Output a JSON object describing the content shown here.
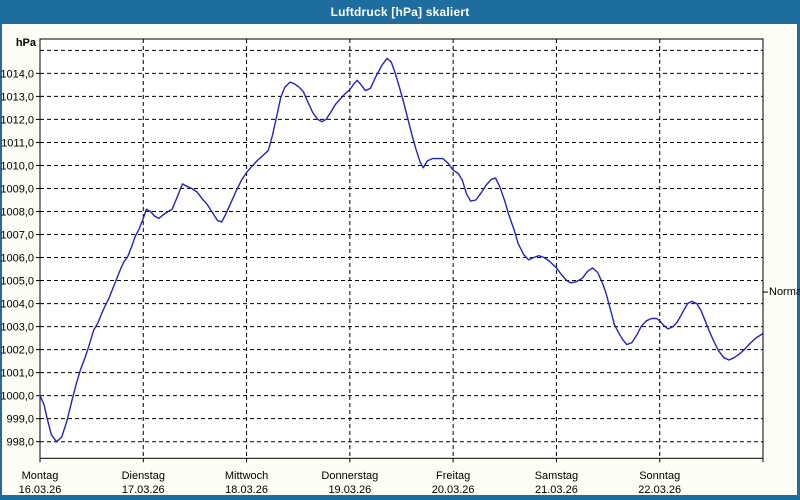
{
  "window": {
    "title": "Luftdruck [hPa] skaliert"
  },
  "colors": {
    "frame_blue": "#1d6d9e",
    "curve_blue": "#2323bd",
    "grid_black": "#000000",
    "panel_bg": "#fdfdf5",
    "plot_bg": "#ffffff",
    "title_text": "#ffffff"
  },
  "chart_data": {
    "type": "line",
    "title": "Luftdruck [hPa] skaliert",
    "unit_label": "hPa",
    "ylabel": "hPa",
    "grid": "dashed",
    "y_axis": {
      "labeled_min": 998.0,
      "labeled_max": 1014.0,
      "tick_step": 1.0,
      "gridline_top_unlabeled": 1015.0,
      "tick_labels": [
        "998,0",
        "999,0",
        "1000,0",
        "1001,0",
        "1002,0",
        "1003,0",
        "1004,0",
        "1005,0",
        "1006,0",
        "1007,0",
        "1008,0",
        "1009,0",
        "1010,0",
        "1011,0",
        "1012,0",
        "1013,0",
        "1014,0"
      ]
    },
    "x_axis": {
      "days": [
        {
          "label": "Montag",
          "date": "16.03.26"
        },
        {
          "label": "Dienstag",
          "date": "17.03.26"
        },
        {
          "label": "Mittwoch",
          "date": "18.03.26"
        },
        {
          "label": "Donnerstag",
          "date": "19.03.26"
        },
        {
          "label": "Freitag",
          "date": "20.03.26"
        },
        {
          "label": "Samstag",
          "date": "21.03.26"
        },
        {
          "label": "Sonntag",
          "date": "22.03.26"
        }
      ],
      "total_days": 7
    },
    "normal": {
      "label": "Normal",
      "value": 1004.5
    },
    "series": [
      {
        "name": "Luftdruck",
        "unit": "hPa",
        "points": [
          [
            0.0,
            1000.0
          ],
          [
            0.04,
            999.6
          ],
          [
            0.07,
            999.0
          ],
          [
            0.11,
            998.3
          ],
          [
            0.16,
            998.0
          ],
          [
            0.21,
            998.2
          ],
          [
            0.26,
            998.9
          ],
          [
            0.31,
            999.8
          ],
          [
            0.35,
            1000.5
          ],
          [
            0.39,
            1001.1
          ],
          [
            0.44,
            1001.7
          ],
          [
            0.47,
            1002.1
          ],
          [
            0.52,
            1002.85
          ],
          [
            0.56,
            1003.15
          ],
          [
            0.6,
            1003.6
          ],
          [
            0.63,
            1003.9
          ],
          [
            0.67,
            1004.25
          ],
          [
            0.7,
            1004.6
          ],
          [
            0.74,
            1005.05
          ],
          [
            0.78,
            1005.5
          ],
          [
            0.81,
            1005.8
          ],
          [
            0.85,
            1006.05
          ],
          [
            0.89,
            1006.5
          ],
          [
            0.92,
            1006.9
          ],
          [
            0.96,
            1007.25
          ],
          [
            1.0,
            1007.7
          ],
          [
            1.03,
            1008.1
          ],
          [
            1.07,
            1008.0
          ],
          [
            1.11,
            1007.8
          ],
          [
            1.15,
            1007.7
          ],
          [
            1.19,
            1007.85
          ],
          [
            1.24,
            1008.0
          ],
          [
            1.28,
            1008.1
          ],
          [
            1.33,
            1008.65
          ],
          [
            1.38,
            1009.2
          ],
          [
            1.42,
            1009.1
          ],
          [
            1.47,
            1009.0
          ],
          [
            1.52,
            1008.85
          ],
          [
            1.57,
            1008.55
          ],
          [
            1.62,
            1008.3
          ],
          [
            1.67,
            1007.95
          ],
          [
            1.72,
            1007.6
          ],
          [
            1.76,
            1007.55
          ],
          [
            1.8,
            1007.9
          ],
          [
            1.85,
            1008.4
          ],
          [
            1.9,
            1008.9
          ],
          [
            1.95,
            1009.35
          ],
          [
            2.0,
            1009.7
          ],
          [
            2.05,
            1009.95
          ],
          [
            2.1,
            1010.2
          ],
          [
            2.15,
            1010.4
          ],
          [
            2.21,
            1010.65
          ],
          [
            2.25,
            1011.3
          ],
          [
            2.29,
            1012.1
          ],
          [
            2.33,
            1012.95
          ],
          [
            2.37,
            1013.4
          ],
          [
            2.42,
            1013.62
          ],
          [
            2.46,
            1013.55
          ],
          [
            2.51,
            1013.4
          ],
          [
            2.55,
            1013.2
          ],
          [
            2.6,
            1012.7
          ],
          [
            2.64,
            1012.3
          ],
          [
            2.69,
            1012.0
          ],
          [
            2.73,
            1011.9
          ],
          [
            2.77,
            1012.0
          ],
          [
            2.82,
            1012.35
          ],
          [
            2.86,
            1012.65
          ],
          [
            2.91,
            1012.9
          ],
          [
            2.95,
            1013.1
          ],
          [
            3.0,
            1013.3
          ],
          [
            3.04,
            1013.55
          ],
          [
            3.07,
            1013.7
          ],
          [
            3.11,
            1013.5
          ],
          [
            3.15,
            1013.25
          ],
          [
            3.2,
            1013.35
          ],
          [
            3.25,
            1013.85
          ],
          [
            3.31,
            1014.35
          ],
          [
            3.36,
            1014.65
          ],
          [
            3.4,
            1014.5
          ],
          [
            3.44,
            1014.0
          ],
          [
            3.48,
            1013.4
          ],
          [
            3.52,
            1012.75
          ],
          [
            3.56,
            1012.05
          ],
          [
            3.6,
            1011.35
          ],
          [
            3.64,
            1010.7
          ],
          [
            3.68,
            1010.15
          ],
          [
            3.71,
            1009.9
          ],
          [
            3.75,
            1010.2
          ],
          [
            3.8,
            1010.3
          ],
          [
            3.85,
            1010.3
          ],
          [
            3.9,
            1010.3
          ],
          [
            3.95,
            1010.1
          ],
          [
            4.0,
            1009.8
          ],
          [
            4.05,
            1009.65
          ],
          [
            4.09,
            1009.35
          ],
          [
            4.13,
            1008.75
          ],
          [
            4.17,
            1008.45
          ],
          [
            4.22,
            1008.5
          ],
          [
            4.27,
            1008.8
          ],
          [
            4.32,
            1009.15
          ],
          [
            4.37,
            1009.4
          ],
          [
            4.41,
            1009.45
          ],
          [
            4.45,
            1009.1
          ],
          [
            4.5,
            1008.45
          ],
          [
            4.54,
            1007.85
          ],
          [
            4.59,
            1007.2
          ],
          [
            4.63,
            1006.6
          ],
          [
            4.68,
            1006.15
          ],
          [
            4.73,
            1005.9
          ],
          [
            4.78,
            1006.0
          ],
          [
            4.83,
            1006.08
          ],
          [
            4.88,
            1006.0
          ],
          [
            4.93,
            1005.85
          ],
          [
            5.0,
            1005.55
          ],
          [
            5.05,
            1005.25
          ],
          [
            5.1,
            1005.0
          ],
          [
            5.14,
            1004.9
          ],
          [
            5.19,
            1004.95
          ],
          [
            5.25,
            1005.1
          ],
          [
            5.3,
            1005.4
          ],
          [
            5.35,
            1005.55
          ],
          [
            5.4,
            1005.35
          ],
          [
            5.44,
            1004.95
          ],
          [
            5.48,
            1004.45
          ],
          [
            5.52,
            1003.8
          ],
          [
            5.56,
            1003.1
          ],
          [
            5.6,
            1002.75
          ],
          [
            5.64,
            1002.45
          ],
          [
            5.68,
            1002.22
          ],
          [
            5.73,
            1002.3
          ],
          [
            5.78,
            1002.65
          ],
          [
            5.82,
            1003.0
          ],
          [
            5.87,
            1003.25
          ],
          [
            5.92,
            1003.35
          ],
          [
            5.97,
            1003.35
          ],
          [
            6.0,
            1003.25
          ],
          [
            6.04,
            1003.05
          ],
          [
            6.08,
            1002.9
          ],
          [
            6.13,
            1003.0
          ],
          [
            6.17,
            1003.2
          ],
          [
            6.22,
            1003.6
          ],
          [
            6.27,
            1004.0
          ],
          [
            6.31,
            1004.1
          ],
          [
            6.36,
            1004.0
          ],
          [
            6.4,
            1003.7
          ],
          [
            6.44,
            1003.25
          ],
          [
            6.48,
            1002.8
          ],
          [
            6.52,
            1002.4
          ],
          [
            6.57,
            1001.95
          ],
          [
            6.62,
            1001.65
          ],
          [
            6.67,
            1001.55
          ],
          [
            6.72,
            1001.65
          ],
          [
            6.77,
            1001.8
          ],
          [
            6.82,
            1002.0
          ],
          [
            6.87,
            1002.25
          ],
          [
            6.93,
            1002.5
          ],
          [
            7.0,
            1002.7
          ]
        ]
      }
    ]
  }
}
